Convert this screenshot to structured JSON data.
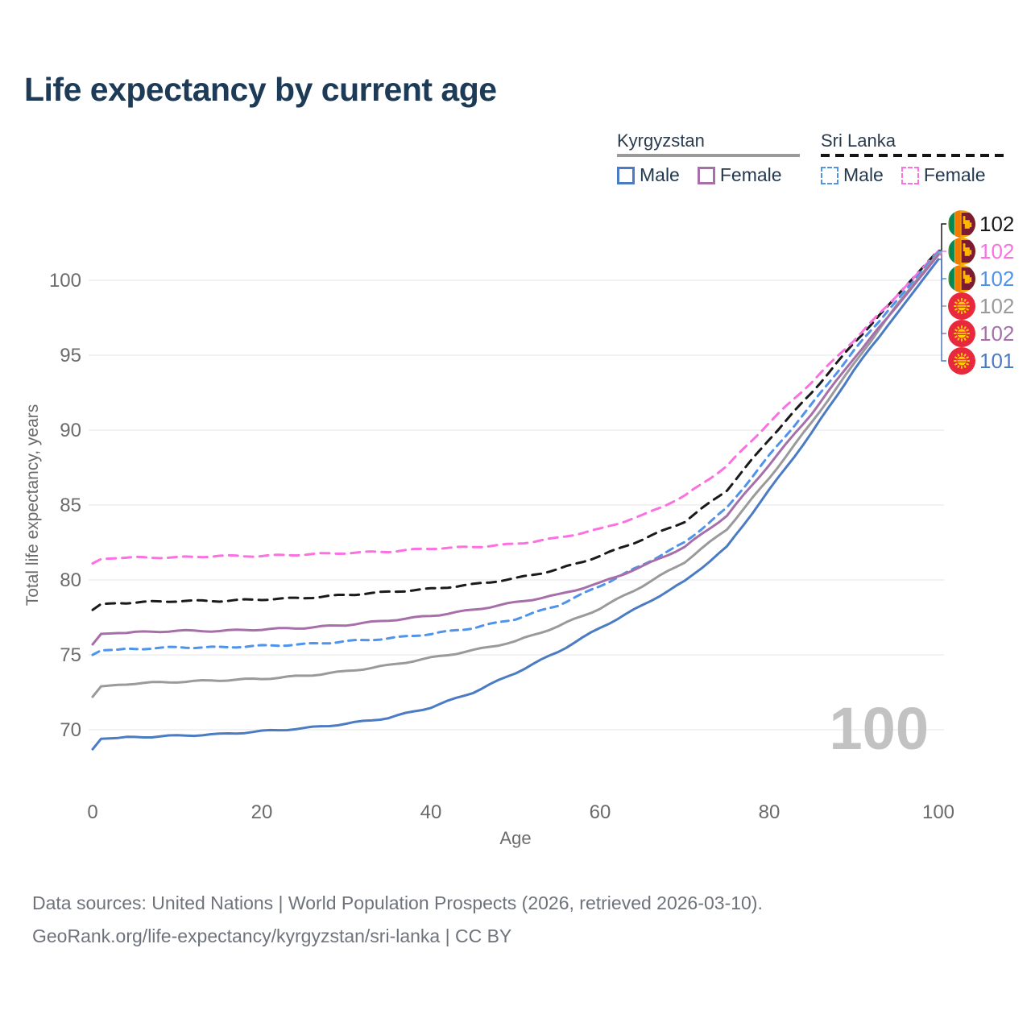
{
  "title": "Life expectancy by current age",
  "legend": {
    "groups": [
      {
        "name": "Kyrgyzstan",
        "underline_style": "solid",
        "underline_color": "#9a9a9a",
        "items": [
          {
            "label": "Male",
            "color": "#4b7bc3",
            "dashed": false
          },
          {
            "label": "Female",
            "color": "#a76fa9",
            "dashed": false
          }
        ]
      },
      {
        "name": "Sri Lanka",
        "underline_style": "dashed",
        "underline_color": "#141414",
        "items": [
          {
            "label": "Male",
            "color": "#4f93ea",
            "dashed": true
          },
          {
            "label": "Female",
            "color": "#fb71e1",
            "dashed": true
          }
        ]
      }
    ]
  },
  "chart_data": {
    "type": "line",
    "title": "Life expectancy by current age",
    "xlabel": "Age",
    "ylabel": "Total life expectancy, years",
    "xlim": [
      0,
      100
    ],
    "ylim": [
      67.5,
      103
    ],
    "xticks": [
      0,
      20,
      40,
      60,
      80,
      100
    ],
    "yticks": [
      70,
      75,
      80,
      85,
      90,
      95,
      100
    ],
    "grid": "horizontal",
    "legend_position": "top-right",
    "ages": [
      0,
      1,
      5,
      10,
      15,
      20,
      25,
      30,
      35,
      40,
      45,
      50,
      55,
      60,
      65,
      70,
      75,
      80,
      85,
      90,
      95,
      100
    ],
    "series": [
      {
        "name": "Sri Lanka Total",
        "country": "Sri Lanka",
        "sex": "Both",
        "color": "#1a1a1a",
        "dashed": true,
        "dash": "11,8",
        "flag": "lk",
        "end_label": "102",
        "values": [
          78.0,
          78.4,
          78.5,
          78.6,
          78.6,
          78.7,
          78.8,
          79.0,
          79.2,
          79.4,
          79.7,
          80.1,
          80.7,
          81.6,
          82.7,
          83.9,
          86.0,
          89.4,
          92.5,
          95.8,
          98.9,
          102.0
        ]
      },
      {
        "name": "Sri Lanka Female",
        "country": "Sri Lanka",
        "sex": "Female",
        "color": "#fb71e1",
        "dashed": true,
        "dash": "11,8",
        "flag": "lk",
        "end_label": "102",
        "values": [
          81.1,
          81.4,
          81.5,
          81.5,
          81.6,
          81.6,
          81.7,
          81.8,
          81.9,
          82.1,
          82.2,
          82.4,
          82.8,
          83.4,
          84.3,
          85.6,
          87.6,
          90.5,
          93.2,
          96.0,
          98.9,
          101.95
        ]
      },
      {
        "name": "Sri Lanka Male",
        "country": "Sri Lanka",
        "sex": "Male",
        "color": "#4f93ea",
        "dashed": true,
        "dash": "9,7",
        "flag": "lk",
        "end_label": "102",
        "values": [
          75.0,
          75.3,
          75.4,
          75.5,
          75.5,
          75.6,
          75.7,
          75.9,
          76.1,
          76.4,
          76.8,
          77.4,
          78.3,
          79.6,
          81.0,
          82.5,
          84.8,
          88.3,
          91.7,
          95.3,
          98.6,
          101.9
        ]
      },
      {
        "name": "Kyrgyzstan Total",
        "country": "Kyrgyzstan",
        "sex": "Both",
        "color": "#9a9a9a",
        "dashed": false,
        "dash": "",
        "flag": "kg",
        "end_label": "102",
        "values": [
          72.2,
          72.9,
          73.1,
          73.2,
          73.3,
          73.4,
          73.6,
          73.9,
          74.3,
          74.8,
          75.3,
          75.9,
          76.9,
          78.1,
          79.6,
          81.2,
          83.4,
          86.8,
          90.5,
          94.4,
          98.3,
          101.8
        ]
      },
      {
        "name": "Kyrgyzstan Female",
        "country": "Kyrgyzstan",
        "sex": "Female",
        "color": "#a76fa9",
        "dashed": false,
        "dash": "",
        "flag": "kg",
        "end_label": "102",
        "values": [
          75.7,
          76.4,
          76.5,
          76.6,
          76.6,
          76.7,
          76.8,
          77.0,
          77.3,
          77.6,
          78.0,
          78.5,
          79.0,
          79.8,
          80.9,
          82.2,
          84.3,
          87.7,
          91.1,
          94.8,
          98.2,
          101.7
        ]
      },
      {
        "name": "Kyrgyzstan Male",
        "country": "Kyrgyzstan",
        "sex": "Male",
        "color": "#4b7bc3",
        "dashed": false,
        "dash": "",
        "flag": "kg",
        "end_label": "101",
        "values": [
          68.7,
          69.4,
          69.5,
          69.6,
          69.7,
          69.9,
          70.1,
          70.4,
          70.8,
          71.5,
          72.5,
          73.8,
          75.2,
          76.8,
          78.3,
          79.9,
          82.2,
          86.0,
          89.8,
          94.0,
          97.7,
          101.4
        ]
      }
    ],
    "end_labels_order": [
      "Sri Lanka Total",
      "Sri Lanka Female",
      "Sri Lanka Male",
      "Kyrgyzstan Total",
      "Kyrgyzstan Female",
      "Kyrgyzstan Male"
    ],
    "flag_colors": {
      "kg_red": "#e8283c",
      "kg_sun": "#ffcf00",
      "lk_gold": "#f0a804",
      "lk_green": "#00885a",
      "lk_orange": "#ef7b00",
      "lk_maroon": "#7b1b33",
      "lk_lion": "#ffb700"
    },
    "grid_color": "#e9e9e9",
    "tick_color": "#6b6b6b"
  },
  "watermark": "100",
  "footer": {
    "line1": "Data sources: United Nations | World Population Prospects (2026, retrieved 2026-03-10).",
    "line2": "GeoRank.org/life-expectancy/kyrgyzstan/sri-lanka | CC BY"
  }
}
